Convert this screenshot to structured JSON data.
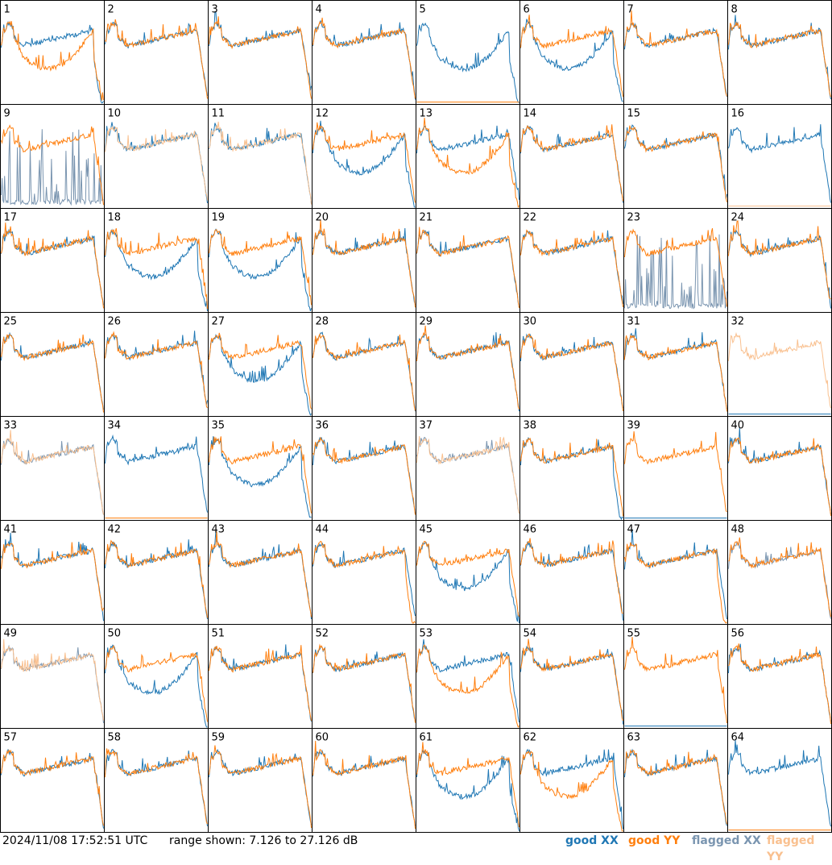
{
  "footer": {
    "timestamp": "2024/11/08 17:52:51 UTC",
    "range": "range shown: 7.126 to 27.126 dB",
    "legend": {
      "good_xx": "good XX",
      "good_yy": "good YY",
      "flagged_xx": "flagged XX",
      "flagged_yy": "flagged YY"
    }
  },
  "colors": {
    "good_xx": "#1f77b4",
    "good_yy": "#ff7f0e",
    "flagged_xx": "#7a95b0",
    "flagged_yy": "#f9c08f"
  },
  "chart_data": {
    "type": "line",
    "layout": "8x8 small multiples",
    "ylim_db": [
      7.126,
      27.126
    ],
    "panels": [
      {
        "label": "1",
        "xx": "steep",
        "yy": "dip"
      },
      {
        "label": "2",
        "xx": "normal",
        "yy": "normal"
      },
      {
        "label": "3",
        "xx": "normal",
        "yy": "normal"
      },
      {
        "label": "4",
        "xx": "normal",
        "yy": "normal"
      },
      {
        "label": "5",
        "xx": "dip",
        "yy": "flat"
      },
      {
        "label": "6",
        "xx": "dip",
        "yy": "normal"
      },
      {
        "label": "7",
        "xx": "normal",
        "yy": "normal"
      },
      {
        "label": "8",
        "xx": "normal",
        "yy": "normal"
      },
      {
        "label": "9",
        "xx": "flagged_spikes",
        "yy": "normal"
      },
      {
        "label": "10",
        "xx": "normal",
        "yy": "flagged"
      },
      {
        "label": "11",
        "xx": "normal",
        "yy": "flagged"
      },
      {
        "label": "12",
        "xx": "dip",
        "yy": "normal"
      },
      {
        "label": "13",
        "xx": "normal",
        "yy": "dip"
      },
      {
        "label": "14",
        "xx": "normal",
        "yy": "normal"
      },
      {
        "label": "15",
        "xx": "normal",
        "yy": "normal"
      },
      {
        "label": "16",
        "xx": "normal",
        "yy": "flagged_flat"
      },
      {
        "label": "17",
        "xx": "normal",
        "yy": "normal"
      },
      {
        "label": "18",
        "xx": "dip",
        "yy": "normal"
      },
      {
        "label": "19",
        "xx": "dip",
        "yy": "normal"
      },
      {
        "label": "20",
        "xx": "normal",
        "yy": "normal"
      },
      {
        "label": "21",
        "xx": "normal",
        "yy": "normal"
      },
      {
        "label": "22",
        "xx": "normal",
        "yy": "normal"
      },
      {
        "label": "23",
        "xx": "flagged_spikes",
        "yy": "normal"
      },
      {
        "label": "24",
        "xx": "normal",
        "yy": "normal"
      },
      {
        "label": "25",
        "xx": "normal",
        "yy": "normal"
      },
      {
        "label": "26",
        "xx": "normal",
        "yy": "normal"
      },
      {
        "label": "27",
        "xx": "dip",
        "yy": "normal"
      },
      {
        "label": "28",
        "xx": "normal",
        "yy": "normal"
      },
      {
        "label": "29",
        "xx": "normal",
        "yy": "normal"
      },
      {
        "label": "30",
        "xx": "normal",
        "yy": "normal"
      },
      {
        "label": "31",
        "xx": "normal",
        "yy": "normal"
      },
      {
        "label": "32",
        "xx": "flat",
        "yy": "flagged"
      },
      {
        "label": "33",
        "xx": "flagged",
        "yy": "flagged"
      },
      {
        "label": "34",
        "xx": "normal",
        "yy": "flat"
      },
      {
        "label": "35",
        "xx": "dip",
        "yy": "normal"
      },
      {
        "label": "36",
        "xx": "normal",
        "yy": "normal"
      },
      {
        "label": "37",
        "xx": "flagged",
        "yy": "flagged"
      },
      {
        "label": "38",
        "xx": "steep",
        "yy": "normal"
      },
      {
        "label": "39",
        "xx": "flat",
        "yy": "normal"
      },
      {
        "label": "40",
        "xx": "normal",
        "yy": "normal"
      },
      {
        "label": "41",
        "xx": "normal",
        "yy": "normal"
      },
      {
        "label": "42",
        "xx": "normal",
        "yy": "normal"
      },
      {
        "label": "43",
        "xx": "normal",
        "yy": "normal"
      },
      {
        "label": "44",
        "xx": "normal",
        "yy": "steep"
      },
      {
        "label": "45",
        "xx": "dip",
        "yy": "normal"
      },
      {
        "label": "46",
        "xx": "normal",
        "yy": "normal"
      },
      {
        "label": "47",
        "xx": "normal",
        "yy": "steep"
      },
      {
        "label": "48",
        "xx": "flagged",
        "yy": "normal"
      },
      {
        "label": "49",
        "xx": "flagged",
        "yy": "flagged"
      },
      {
        "label": "50",
        "xx": "dip",
        "yy": "normal"
      },
      {
        "label": "51",
        "xx": "normal",
        "yy": "normal"
      },
      {
        "label": "52",
        "xx": "normal",
        "yy": "normal"
      },
      {
        "label": "53",
        "xx": "normal",
        "yy": "dip"
      },
      {
        "label": "54",
        "xx": "normal",
        "yy": "normal"
      },
      {
        "label": "55",
        "xx": "flat",
        "yy": "normal"
      },
      {
        "label": "56",
        "xx": "normal",
        "yy": "normal"
      },
      {
        "label": "57",
        "xx": "normal",
        "yy": "normal"
      },
      {
        "label": "58",
        "xx": "normal",
        "yy": "normal"
      },
      {
        "label": "59",
        "xx": "normal",
        "yy": "normal"
      },
      {
        "label": "60",
        "xx": "normal",
        "yy": "normal"
      },
      {
        "label": "61",
        "xx": "dip",
        "yy": "normal"
      },
      {
        "label": "62",
        "xx": "normal",
        "yy": "dip"
      },
      {
        "label": "63",
        "xx": "normal",
        "yy": "normal"
      },
      {
        "label": "64",
        "xx": "normal",
        "yy": "flat"
      }
    ]
  }
}
